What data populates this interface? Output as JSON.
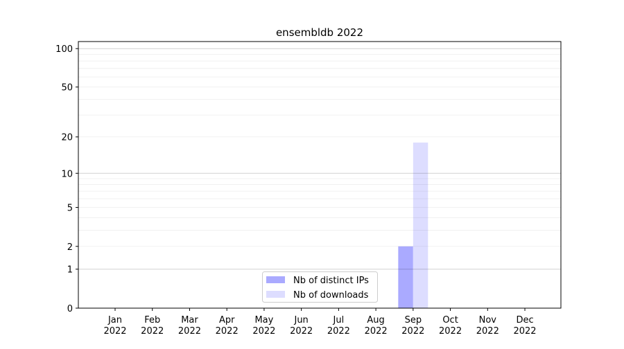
{
  "chart_data": {
    "type": "bar",
    "title": "ensembldb 2022",
    "xlabel": "",
    "ylabel": "",
    "y_scale": "log(1+y)",
    "ylim": [
      0,
      113
    ],
    "y_ticks": [
      0,
      1,
      2,
      5,
      10,
      20,
      50,
      100
    ],
    "grid": true,
    "legend_position": "bottom-center",
    "categories": [
      "Jan\n2022",
      "Feb\n2022",
      "Mar\n2022",
      "Apr\n2022",
      "May\n2022",
      "Jun\n2022",
      "Jul\n2022",
      "Aug\n2022",
      "Sep\n2022",
      "Oct\n2022",
      "Nov\n2022",
      "Dec\n2022"
    ],
    "series": [
      {
        "name": "Nb of distinct IPs",
        "color": "#aaaaff",
        "values": [
          0,
          0,
          0,
          0,
          0,
          0,
          0,
          0,
          2,
          0,
          0,
          0
        ]
      },
      {
        "name": "Nb of downloads",
        "color": "#ddddff",
        "values": [
          0,
          0,
          0,
          0,
          0,
          0,
          0,
          0,
          18,
          0,
          0,
          0
        ]
      }
    ]
  }
}
